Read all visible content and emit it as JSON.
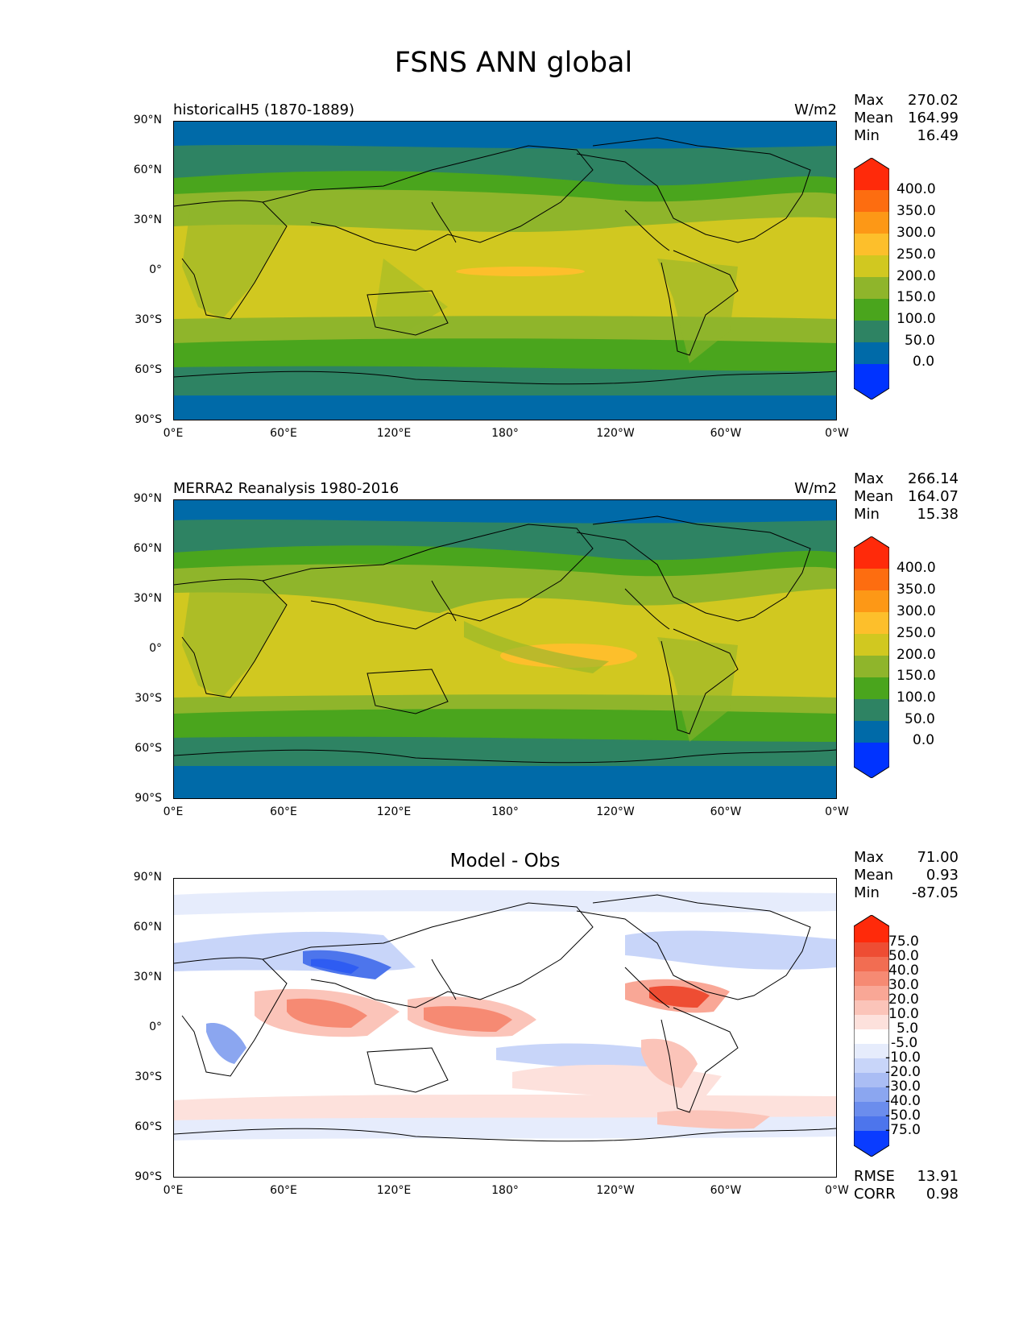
{
  "figure_title": "FSNS ANN global",
  "lat_labels": [
    "90°N",
    "60°N",
    "30°N",
    "0°",
    "30°S",
    "60°S",
    "90°S"
  ],
  "lon_labels": [
    "0°E",
    "60°E",
    "120°E",
    "180°",
    "120°W",
    "60°W",
    "0°W"
  ],
  "panels": [
    {
      "title": "historicalH5 (1870-1889)",
      "units": "W/m2",
      "stats": {
        "max_label": "Max",
        "max": "270.02",
        "mean_label": "Mean",
        "mean": "164.99",
        "min_label": "Min",
        "min": "16.49"
      },
      "colorbar_labels": [
        "400.0",
        "350.0",
        "300.0",
        "250.0",
        "200.0",
        "150.0",
        "100.0",
        "50.0",
        "0.0"
      ],
      "colorbar_colors": [
        "#0033ff",
        "#006aa8",
        "#2e8363",
        "#4aa51d",
        "#8fb52b",
        "#d1c820",
        "#fdbf2b",
        "#fd9816",
        "#fd6d10",
        "#ff2a0a"
      ]
    },
    {
      "title": "MERRA2 Reanalysis 1980-2016",
      "units": "W/m2",
      "stats": {
        "max_label": "Max",
        "max": "266.14",
        "mean_label": "Mean",
        "mean": "164.07",
        "min_label": "Min",
        "min": "15.38"
      },
      "colorbar_labels": [
        "400.0",
        "350.0",
        "300.0",
        "250.0",
        "200.0",
        "150.0",
        "100.0",
        "50.0",
        "0.0"
      ],
      "colorbar_colors": [
        "#0033ff",
        "#006aa8",
        "#2e8363",
        "#4aa51d",
        "#8fb52b",
        "#d1c820",
        "#fdbf2b",
        "#fd9816",
        "#fd6d10",
        "#ff2a0a"
      ]
    },
    {
      "title": "Model - Obs",
      "units": "",
      "stats": {
        "max_label": "Max",
        "max": "71.00",
        "mean_label": "Mean",
        "mean": "0.93",
        "min_label": "Min",
        "min": "-87.05"
      },
      "colorbar_labels": [
        "75.0",
        "50.0",
        "40.0",
        "30.0",
        "20.0",
        "10.0",
        "5.0",
        "-5.0",
        "-10.0",
        "-20.0",
        "-30.0",
        "-40.0",
        "-50.0",
        "-75.0"
      ],
      "colorbar_colors": [
        "#0a3cff",
        "#2e5cf2",
        "#4d75ec",
        "#6b8ded",
        "#8ba6f0",
        "#aabdf4",
        "#c8d5f9",
        "#e6ecfc",
        "#ffffff",
        "#fde1dc",
        "#fbc4b9",
        "#f9a796",
        "#f68a73",
        "#f26d52",
        "#ee4d33",
        "#ff2a0a"
      ]
    }
  ],
  "diff_metrics": {
    "rmse_label": "RMSE",
    "rmse": "13.91",
    "corr_label": "CORR",
    "corr": "0.98"
  }
}
